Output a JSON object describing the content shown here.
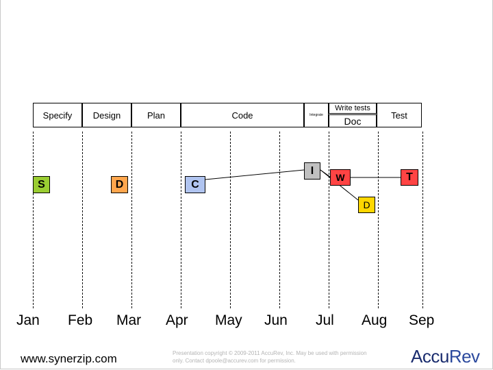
{
  "phases": {
    "specify": {
      "label": "Specify",
      "color": "#9acd32"
    },
    "design": {
      "label": "Design",
      "color": "#ffd700"
    },
    "plan": {
      "label": "Plan",
      "color": "#9e9573"
    },
    "code": {
      "label": "Code",
      "color": "#b0c4f0"
    },
    "integrate": {
      "label": "Integrate",
      "color": "#c0c0c0"
    },
    "write_tests": {
      "label": "Write tests",
      "color": "#b0b0b0"
    },
    "doc": {
      "label": "Doc",
      "color": "#ffd700"
    },
    "test": {
      "label": "Test",
      "color": "#ff4444"
    }
  },
  "milestones": {
    "s": {
      "label": "S",
      "color": "#9acd32"
    },
    "d": {
      "label": "D",
      "color": "#ffa64d"
    },
    "c": {
      "label": "C",
      "color": "#b0c4f0"
    },
    "i": {
      "label": "I",
      "color": "#c0c0c0"
    },
    "w": {
      "label": "W",
      "color": "#ff4444"
    },
    "t": {
      "label": "T",
      "color": "#ff4444"
    },
    "d2": {
      "label": "D",
      "color": "#ffd700"
    }
  },
  "months": [
    "Jan",
    "Feb",
    "Mar",
    "Apr",
    "May",
    "Jun",
    "Jul",
    "Aug",
    "Sep"
  ],
  "footer": {
    "url": "www.synerzip.com",
    "copyright": "Presentation copyright © 2009-2011 AccuRev, Inc. May be used with permission only. Contact dpoole@accurev.com for permission.",
    "logo_main": "Accu",
    "logo_accent": "Rev"
  }
}
